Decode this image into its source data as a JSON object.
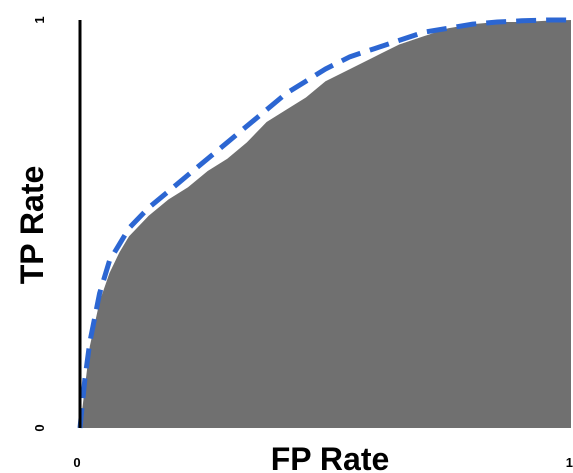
{
  "chart_data": {
    "type": "area",
    "xlabel": "FP Rate",
    "ylabel": "TP Rate",
    "xlim": [
      0,
      1
    ],
    "ylim": [
      0,
      1
    ],
    "x_ticks": [
      "0",
      "1"
    ],
    "y_ticks": [
      "0",
      "1"
    ],
    "grid": false,
    "series": [
      {
        "style": "filled-area",
        "color": "#707070",
        "x": [
          0.0,
          0.01,
          0.02,
          0.04,
          0.06,
          0.08,
          0.1,
          0.14,
          0.18,
          0.22,
          0.26,
          0.3,
          0.34,
          0.38,
          0.42,
          0.46,
          0.5,
          0.55,
          0.6,
          0.65,
          0.7,
          0.75,
          0.8,
          0.85,
          0.9,
          0.95,
          1.0
        ],
        "y": [
          0.0,
          0.1,
          0.2,
          0.31,
          0.38,
          0.43,
          0.47,
          0.52,
          0.56,
          0.59,
          0.63,
          0.66,
          0.7,
          0.75,
          0.78,
          0.81,
          0.85,
          0.88,
          0.91,
          0.94,
          0.96,
          0.98,
          0.99,
          0.995,
          0.995,
          0.998,
          1.0
        ]
      },
      {
        "style": "dashed-line",
        "color": "#2c66d2",
        "x": [
          0.0,
          0.01,
          0.02,
          0.04,
          0.06,
          0.08,
          0.1,
          0.14,
          0.18,
          0.22,
          0.26,
          0.3,
          0.34,
          0.38,
          0.42,
          0.46,
          0.5,
          0.55,
          0.6,
          0.65,
          0.7,
          0.75,
          0.8,
          0.85,
          0.9,
          0.95,
          1.0
        ],
        "y": [
          0.0,
          0.12,
          0.21,
          0.33,
          0.41,
          0.45,
          0.49,
          0.54,
          0.58,
          0.62,
          0.66,
          0.7,
          0.74,
          0.78,
          0.82,
          0.85,
          0.88,
          0.91,
          0.93,
          0.95,
          0.97,
          0.98,
          0.99,
          0.995,
          0.998,
          1.0,
          1.0
        ]
      }
    ]
  }
}
